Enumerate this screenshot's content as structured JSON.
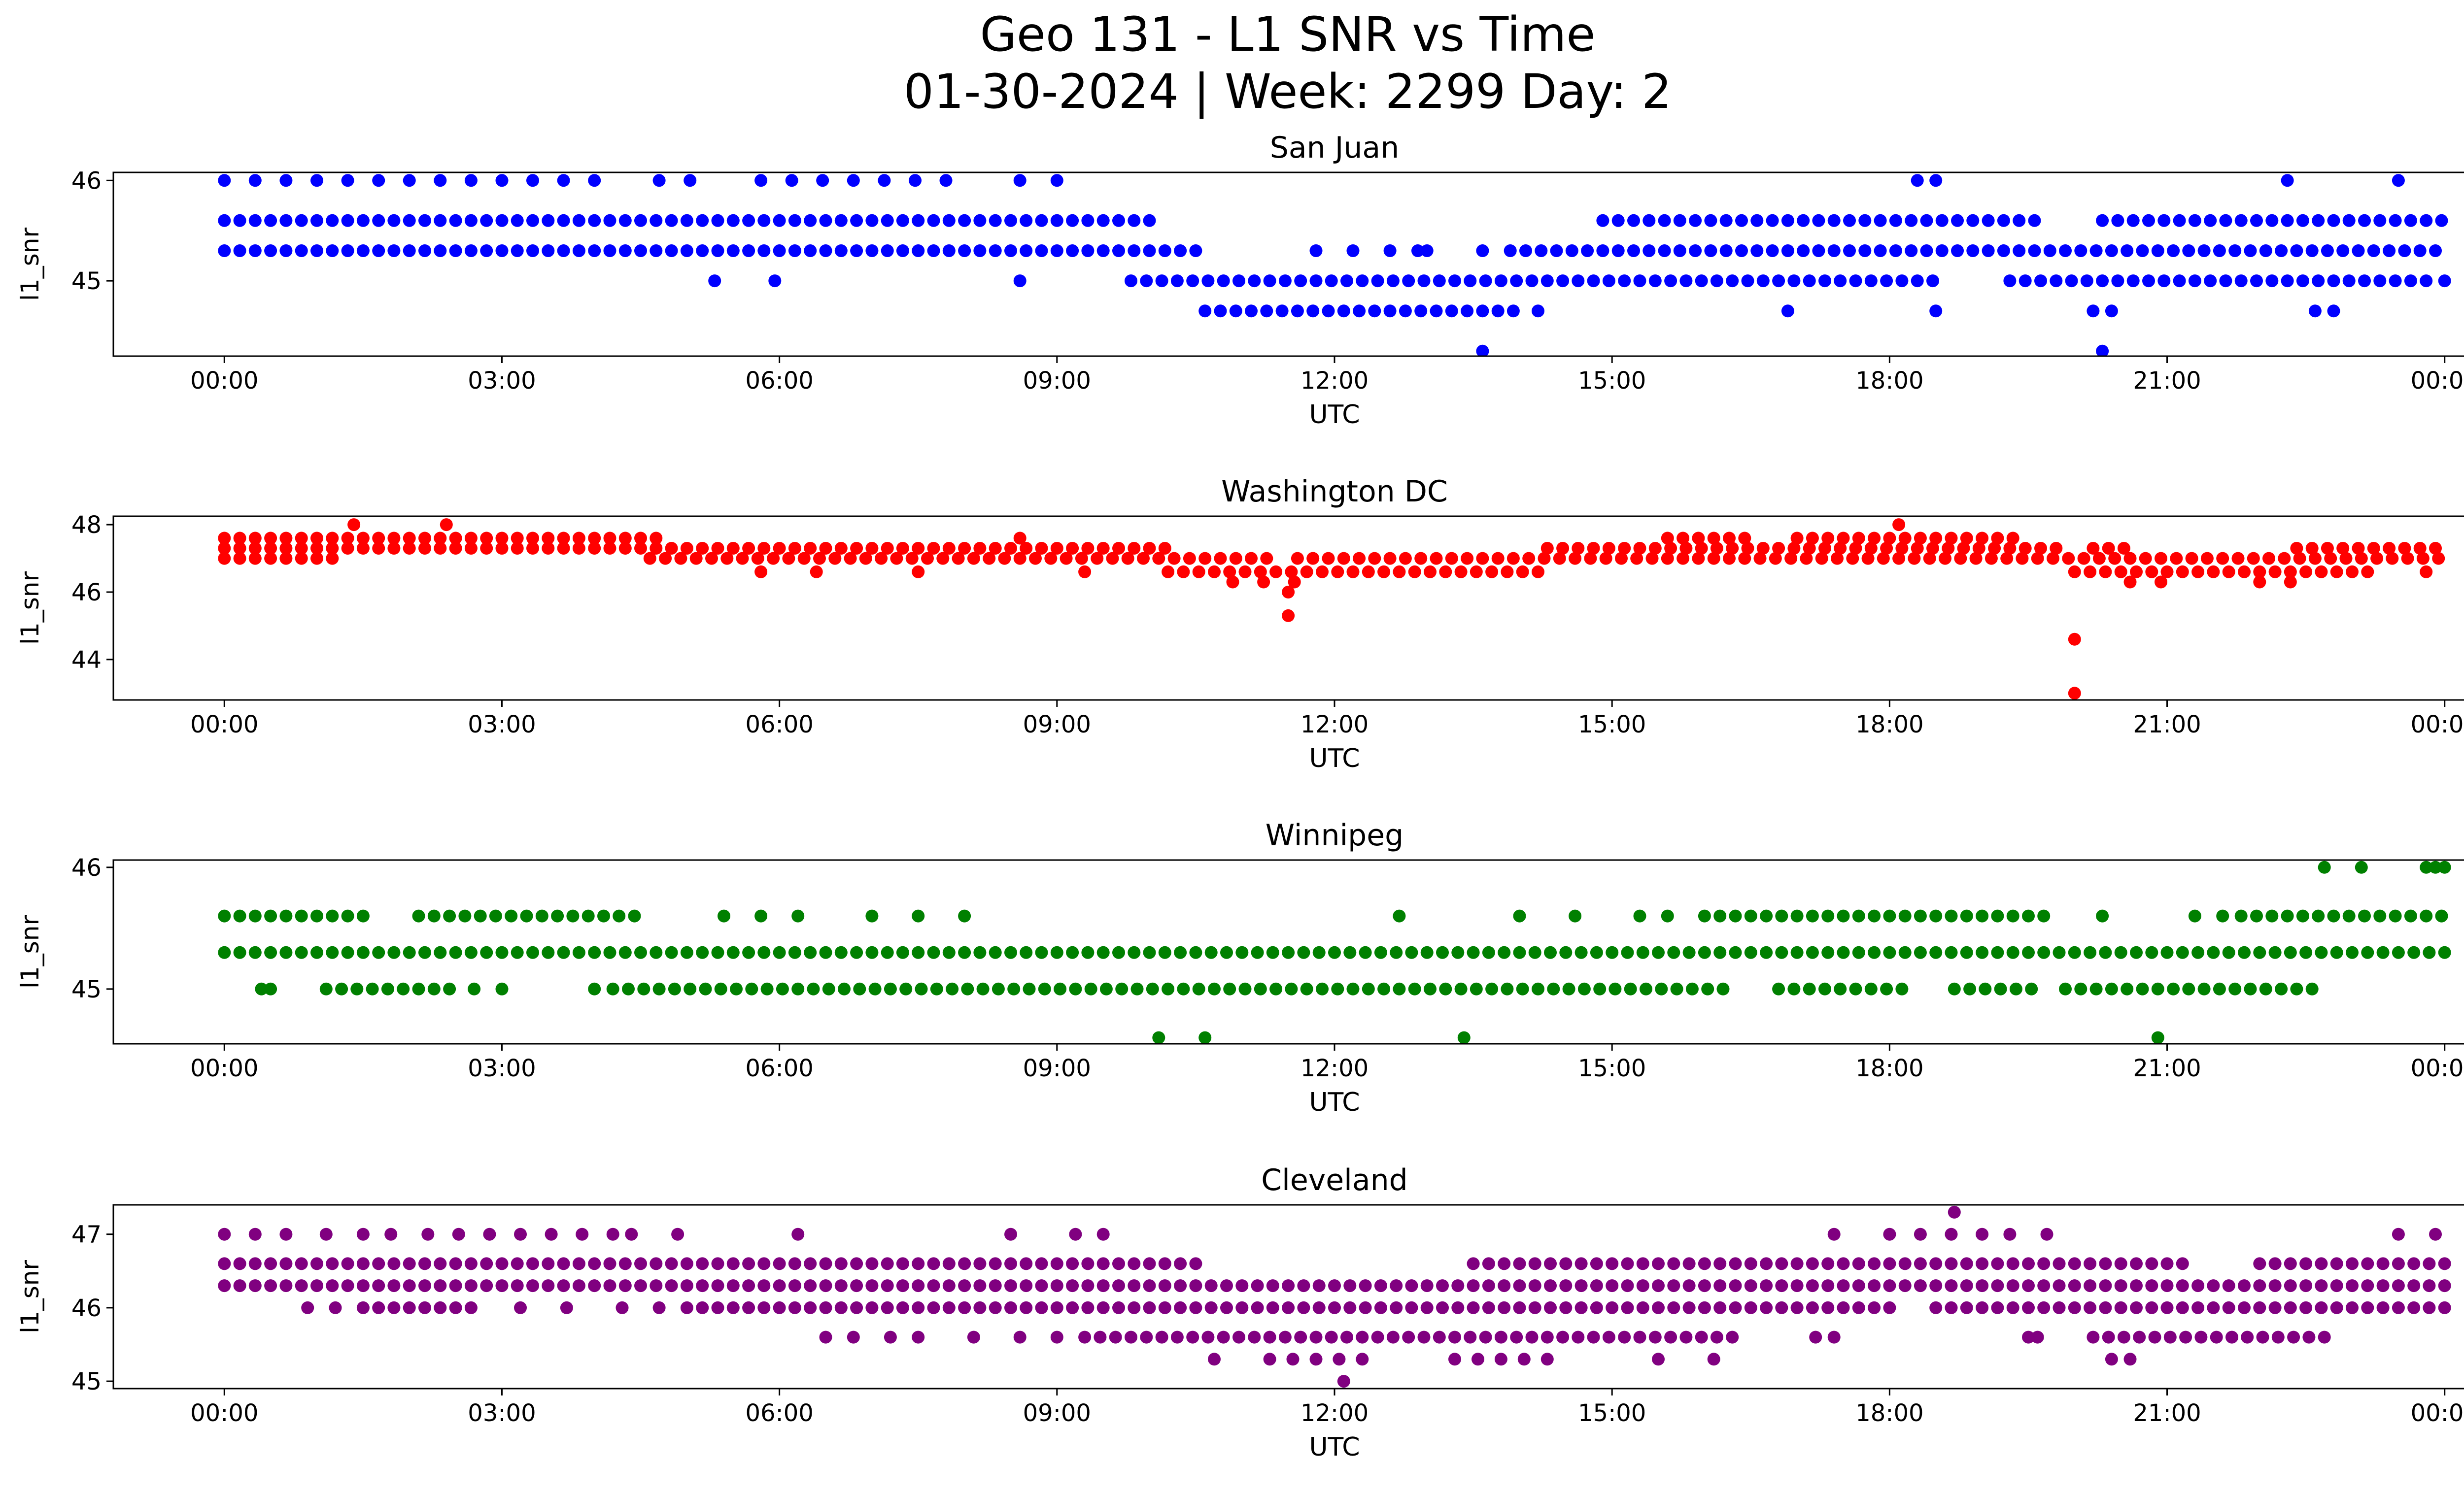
{
  "figure": {
    "title_line1": "Geo 131 - L1 SNR vs Time",
    "title_line2": "01-30-2024 | Week: 2299 Day: 2"
  },
  "chart_data": [
    {
      "type": "scatter",
      "title": "San Juan",
      "xlabel": "UTC",
      "ylabel": "l1_snr",
      "color": "#0000ff",
      "x_ticks": [
        "00:00",
        "03:00",
        "06:00",
        "09:00",
        "12:00",
        "15:00",
        "18:00",
        "21:00",
        "00:00"
      ],
      "xlim": [
        -1.2,
        25.2
      ],
      "y_ticks": [
        45,
        46
      ],
      "ylim": [
        44.25,
        46.08
      ],
      "bands": [
        {
          "y": 46.0,
          "segments": [
            [
              0.0,
              4.3
            ],
            [
              4.7,
              5.3
            ],
            [
              5.8,
              7.8
            ]
          ],
          "density": 3
        },
        {
          "y": 45.6,
          "segments": [
            [
              0.0,
              10.1
            ],
            [
              14.9,
              19.6
            ],
            [
              20.3,
              24.0
            ]
          ],
          "density": 6
        },
        {
          "y": 45.3,
          "segments": [
            [
              0.0,
              10.6
            ],
            [
              13.9,
              24.0
            ]
          ],
          "density": 6
        },
        {
          "y": 45.0,
          "segments": [
            [
              9.8,
              18.5
            ],
            [
              19.3,
              23.8
            ]
          ],
          "density": 6
        },
        {
          "y": 44.7,
          "segments": [
            [
              10.6,
              14.0
            ]
          ],
          "density": 6
        }
      ],
      "points": [
        {
          "x": 5.3,
          "y": 45.0
        },
        {
          "x": 5.95,
          "y": 45.0
        },
        {
          "x": 8.6,
          "y": 45.0
        },
        {
          "x": 24.0,
          "y": 45.0
        },
        {
          "x": 8.6,
          "y": 46.0
        },
        {
          "x": 9.0,
          "y": 46.0
        },
        {
          "x": 18.3,
          "y": 46.0
        },
        {
          "x": 18.5,
          "y": 46.0
        },
        {
          "x": 22.3,
          "y": 46.0
        },
        {
          "x": 23.5,
          "y": 46.0
        },
        {
          "x": 11.8,
          "y": 45.3
        },
        {
          "x": 12.2,
          "y": 45.3
        },
        {
          "x": 12.6,
          "y": 45.3
        },
        {
          "x": 12.9,
          "y": 45.3
        },
        {
          "x": 13.0,
          "y": 45.3
        },
        {
          "x": 13.6,
          "y": 45.3
        },
        {
          "x": 14.2,
          "y": 44.7
        },
        {
          "x": 16.9,
          "y": 44.7
        },
        {
          "x": 18.5,
          "y": 44.7
        },
        {
          "x": 20.2,
          "y": 44.7
        },
        {
          "x": 20.4,
          "y": 44.7
        },
        {
          "x": 22.6,
          "y": 44.7
        },
        {
          "x": 22.8,
          "y": 44.7
        },
        {
          "x": 13.6,
          "y": 44.3
        },
        {
          "x": 20.3,
          "y": 44.3
        }
      ]
    },
    {
      "type": "scatter",
      "title": "Washington DC",
      "xlabel": "UTC",
      "ylabel": "l1_snr",
      "color": "#ff0000",
      "x_ticks": [
        "00:00",
        "03:00",
        "06:00",
        "09:00",
        "12:00",
        "15:00",
        "18:00",
        "21:00",
        "00:00"
      ],
      "xlim": [
        -1.2,
        25.2
      ],
      "y_ticks": [
        44,
        46,
        48
      ],
      "ylim": [
        42.8,
        48.25
      ],
      "bands": [
        {
          "y": 47.6,
          "segments": [
            [
              0.0,
              4.7
            ],
            [
              15.6,
              16.5
            ],
            [
              17.0,
              19.4
            ]
          ],
          "density": 6
        },
        {
          "y": 47.3,
          "segments": [
            [
              0.0,
              10.2
            ],
            [
              14.3,
              19.8
            ],
            [
              20.2,
              20.6
            ],
            [
              22.4,
              24.0
            ]
          ],
          "density": 6
        },
        {
          "y": 47.0,
          "segments": [
            [
              0.0,
              1.2
            ],
            [
              4.6,
              11.3
            ],
            [
              11.6,
              24.0
            ]
          ],
          "density": 6
        },
        {
          "y": 46.6,
          "segments": [
            [
              10.2,
              14.3
            ],
            [
              20.0,
              23.3
            ]
          ],
          "density": 6
        },
        {
          "y": 46.3,
          "segments": [
            [
              10.9,
              11.6
            ],
            [
              20.6,
              21.0
            ],
            [
              22.0,
              22.6
            ]
          ],
          "density": 3
        }
      ],
      "points": [
        {
          "x": 1.4,
          "y": 48.0
        },
        {
          "x": 2.4,
          "y": 48.0
        },
        {
          "x": 18.1,
          "y": 48.0
        },
        {
          "x": 8.6,
          "y": 47.6
        },
        {
          "x": 5.8,
          "y": 46.6
        },
        {
          "x": 6.4,
          "y": 46.6
        },
        {
          "x": 7.5,
          "y": 46.6
        },
        {
          "x": 9.3,
          "y": 46.6
        },
        {
          "x": 23.8,
          "y": 46.6
        },
        {
          "x": 11.5,
          "y": 46.0
        },
        {
          "x": 11.5,
          "y": 45.3
        },
        {
          "x": 20.0,
          "y": 44.6
        },
        {
          "x": 20.0,
          "y": 43.0
        }
      ]
    },
    {
      "type": "scatter",
      "title": "Winnipeg",
      "xlabel": "UTC",
      "ylabel": "l1_snr",
      "color": "#008000",
      "x_ticks": [
        "00:00",
        "03:00",
        "06:00",
        "09:00",
        "12:00",
        "15:00",
        "18:00",
        "21:00",
        "00:00"
      ],
      "xlim": [
        -1.2,
        25.2
      ],
      "y_ticks": [
        45,
        46
      ],
      "ylim": [
        44.55,
        46.06
      ],
      "bands": [
        {
          "y": 45.6,
          "segments": [
            [
              0.0,
              1.5
            ],
            [
              2.1,
              4.5
            ],
            [
              16.0,
              19.8
            ],
            [
              21.8,
              24.0
            ]
          ],
          "density": 6
        },
        {
          "y": 45.3,
          "segments": [
            [
              0.0,
              24.0
            ]
          ],
          "density": 6
        },
        {
          "y": 45.0,
          "segments": [
            [
              1.1,
              2.5
            ],
            [
              4.2,
              16.3
            ],
            [
              16.8,
              18.2
            ],
            [
              18.7,
              19.6
            ],
            [
              19.9,
              22.6
            ]
          ],
          "density": 6
        }
      ],
      "points": [
        {
          "x": 0.4,
          "y": 45.0
        },
        {
          "x": 0.5,
          "y": 45.0
        },
        {
          "x": 2.7,
          "y": 45.0
        },
        {
          "x": 3.0,
          "y": 45.0
        },
        {
          "x": 4.0,
          "y": 45.0
        },
        {
          "x": 5.4,
          "y": 45.6
        },
        {
          "x": 5.8,
          "y": 45.6
        },
        {
          "x": 6.2,
          "y": 45.6
        },
        {
          "x": 7.0,
          "y": 45.6
        },
        {
          "x": 7.5,
          "y": 45.6
        },
        {
          "x": 8.0,
          "y": 45.6
        },
        {
          "x": 12.7,
          "y": 45.6
        },
        {
          "x": 14.0,
          "y": 45.6
        },
        {
          "x": 14.6,
          "y": 45.6
        },
        {
          "x": 15.3,
          "y": 45.6
        },
        {
          "x": 15.6,
          "y": 45.6
        },
        {
          "x": 20.3,
          "y": 45.6
        },
        {
          "x": 21.3,
          "y": 45.6
        },
        {
          "x": 21.6,
          "y": 45.6
        },
        {
          "x": 22.7,
          "y": 46.0
        },
        {
          "x": 23.1,
          "y": 46.0
        },
        {
          "x": 23.8,
          "y": 46.0
        },
        {
          "x": 23.9,
          "y": 46.0
        },
        {
          "x": 24.0,
          "y": 46.0
        },
        {
          "x": 10.1,
          "y": 44.6
        },
        {
          "x": 10.6,
          "y": 44.6
        },
        {
          "x": 13.4,
          "y": 44.6
        },
        {
          "x": 20.9,
          "y": 44.6
        }
      ]
    },
    {
      "type": "scatter",
      "title": "Cleveland",
      "xlabel": "UTC",
      "ylabel": "l1_snr",
      "color": "#800080",
      "x_ticks": [
        "00:00",
        "03:00",
        "06:00",
        "09:00",
        "12:00",
        "15:00",
        "18:00",
        "21:00",
        "00:00"
      ],
      "xlim": [
        -1.2,
        25.2
      ],
      "y_ticks": [
        45,
        46,
        47
      ],
      "ylim": [
        44.9,
        47.4
      ],
      "bands": [
        {
          "y": 47.0,
          "segments": [
            [
              0.0,
              0.7
            ],
            [
              2.2,
              2.9
            ],
            [
              3.2,
              3.9
            ],
            [
              8.5,
              8.8
            ],
            [
              17.4,
              17.6
            ],
            [
              18.0,
              19.0
            ]
          ],
          "density": 3
        },
        {
          "y": 46.6,
          "segments": [
            [
              0.0,
              10.5
            ],
            [
              13.5,
              21.3
            ],
            [
              22.0,
              24.0
            ]
          ],
          "density": 6
        },
        {
          "y": 46.3,
          "segments": [
            [
              0.0,
              24.0
            ]
          ],
          "density": 6
        },
        {
          "y": 46.0,
          "segments": [
            [
              1.5,
              2.7
            ],
            [
              5.0,
              18.0
            ],
            [
              18.5,
              24.0
            ]
          ],
          "density": 6
        },
        {
          "y": 45.6,
          "segments": [
            [
              9.3,
              16.3
            ],
            [
              20.2,
              22.7
            ]
          ],
          "density": 6
        },
        {
          "y": 45.3,
          "segments": [
            [
              11.3,
              12.4
            ],
            [
              13.3,
              14.5
            ]
          ],
          "density": 4
        }
      ],
      "points": [
        {
          "x": 1.1,
          "y": 47.0
        },
        {
          "x": 1.5,
          "y": 47.0
        },
        {
          "x": 1.8,
          "y": 47.0
        },
        {
          "x": 4.2,
          "y": 47.0
        },
        {
          "x": 4.4,
          "y": 47.0
        },
        {
          "x": 4.9,
          "y": 47.0
        },
        {
          "x": 6.2,
          "y": 47.0
        },
        {
          "x": 9.2,
          "y": 47.0
        },
        {
          "x": 9.5,
          "y": 47.0
        },
        {
          "x": 19.3,
          "y": 47.0
        },
        {
          "x": 19.7,
          "y": 47.0
        },
        {
          "x": 23.5,
          "y": 47.0
        },
        {
          "x": 23.9,
          "y": 47.0
        },
        {
          "x": 18.7,
          "y": 47.3
        },
        {
          "x": 0.9,
          "y": 46.0
        },
        {
          "x": 1.2,
          "y": 46.0
        },
        {
          "x": 3.2,
          "y": 46.0
        },
        {
          "x": 3.7,
          "y": 46.0
        },
        {
          "x": 4.3,
          "y": 46.0
        },
        {
          "x": 4.7,
          "y": 46.0
        },
        {
          "x": 6.5,
          "y": 45.6
        },
        {
          "x": 6.8,
          "y": 45.6
        },
        {
          "x": 7.2,
          "y": 45.6
        },
        {
          "x": 7.5,
          "y": 45.6
        },
        {
          "x": 8.1,
          "y": 45.6
        },
        {
          "x": 8.6,
          "y": 45.6
        },
        {
          "x": 9.0,
          "y": 45.6
        },
        {
          "x": 17.2,
          "y": 45.6
        },
        {
          "x": 17.4,
          "y": 45.6
        },
        {
          "x": 19.5,
          "y": 45.6
        },
        {
          "x": 19.6,
          "y": 45.6
        },
        {
          "x": 10.7,
          "y": 45.3
        },
        {
          "x": 15.5,
          "y": 45.3
        },
        {
          "x": 16.1,
          "y": 45.3
        },
        {
          "x": 20.4,
          "y": 45.3
        },
        {
          "x": 20.6,
          "y": 45.3
        },
        {
          "x": 12.1,
          "y": 45.0
        }
      ]
    }
  ]
}
